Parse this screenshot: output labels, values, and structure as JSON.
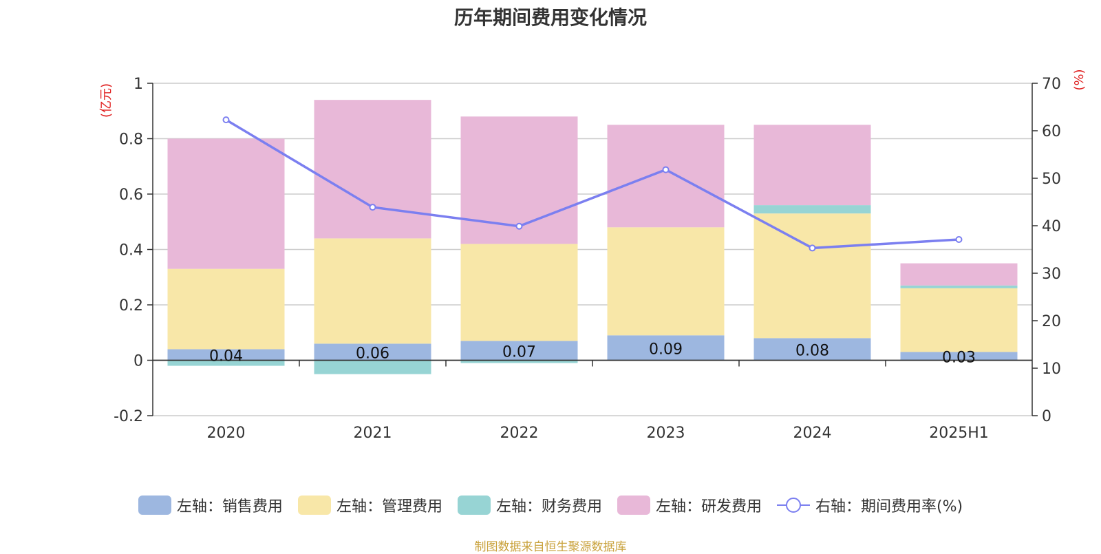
{
  "chart_data": {
    "type": "bar",
    "stacked": true,
    "title": "历年期间费用变化情况",
    "categories": [
      "2020",
      "2021",
      "2022",
      "2023",
      "2024",
      "2025H1"
    ],
    "y_left": {
      "label": "(亿元)",
      "min": -0.2,
      "max": 1,
      "ticks": [
        -0.2,
        0,
        0.2,
        0.4,
        0.6,
        0.8,
        1
      ],
      "tick_labels": [
        "-0.2",
        "0",
        "0.2",
        "0.4",
        "0.6",
        "0.8",
        "1"
      ]
    },
    "y_right": {
      "label": "(%)",
      "min": 0,
      "max": 70,
      "ticks": [
        0,
        10,
        20,
        30,
        40,
        50,
        60,
        70
      ],
      "tick_labels": [
        "0",
        "10",
        "20",
        "30",
        "40",
        "50",
        "60",
        "70"
      ]
    },
    "series": [
      {
        "name": "左轴：销售费用",
        "type": "bar",
        "color": "#9db7e0",
        "values": [
          0.04,
          0.06,
          0.07,
          0.09,
          0.08,
          0.03
        ],
        "labels": [
          "0.04",
          "0.06",
          "0.07",
          "0.09",
          "0.08",
          "0.03"
        ]
      },
      {
        "name": "左轴：管理费用",
        "type": "bar",
        "color": "#f8e7a8",
        "values": [
          0.29,
          0.38,
          0.35,
          0.39,
          0.45,
          0.23
        ]
      },
      {
        "name": "左轴：财务费用",
        "type": "bar",
        "color": "#97d4d4",
        "values": [
          -0.02,
          -0.05,
          -0.01,
          0.0,
          0.03,
          0.01
        ]
      },
      {
        "name": "左轴：研发费用",
        "type": "bar",
        "color": "#e8b8d8",
        "values": [
          0.47,
          0.5,
          0.46,
          0.37,
          0.29,
          0.08
        ]
      },
      {
        "name": "右轴：期间费用率(%)",
        "type": "line",
        "axis": "right",
        "color": "#7b7ff0",
        "values": [
          62.3,
          43.9,
          39.9,
          51.8,
          35.3,
          37.1
        ]
      }
    ],
    "grid": true,
    "legend_position": "bottom"
  },
  "footer": {
    "source": "制图数据来自恒生聚源数据库"
  }
}
